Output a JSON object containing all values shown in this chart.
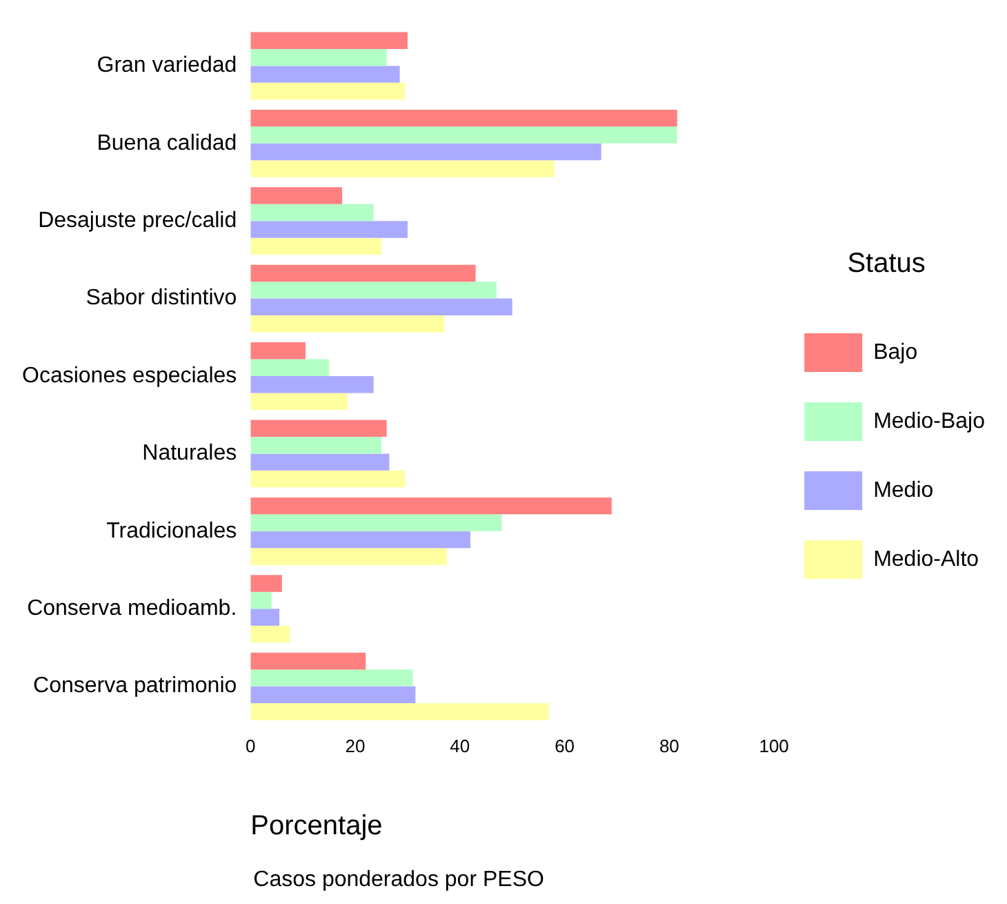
{
  "chart_data": {
    "type": "bar",
    "orientation": "horizontal",
    "xlabel": "Porcentaje",
    "legend_title": "Status",
    "legend": "right",
    "grid": false,
    "categories": [
      "Gran variedad",
      "Buena calidad",
      "Desajuste prec/calid",
      "Sabor distintivo",
      "Ocasiones especiales",
      "Naturales",
      "Tradicionales",
      "Conserva medioamb.",
      "Conserva patrimonio"
    ],
    "xlim": [
      0,
      100
    ],
    "xticks": [
      0,
      20,
      40,
      60,
      80,
      100
    ],
    "series": [
      {
        "name": "Bajo",
        "color": "#ff8080",
        "values": [
          30,
          81.5,
          17.5,
          43,
          10.5,
          26,
          69,
          6,
          22
        ]
      },
      {
        "name": "Medio-Bajo",
        "color": "#b3ffc6",
        "values": [
          26,
          81.5,
          23.5,
          47,
          15,
          25,
          48,
          4,
          31
        ]
      },
      {
        "name": "Medio",
        "color": "#aaaaff",
        "values": [
          28.5,
          67,
          30,
          50,
          23.5,
          26.5,
          42,
          5.5,
          31.5
        ]
      },
      {
        "name": "Medio-Alto",
        "color": "#ffffa0",
        "values": [
          29.5,
          58,
          25,
          37,
          18.5,
          29.5,
          37.5,
          7.5,
          57
        ]
      }
    ],
    "annotations": [
      "Casos ponderados por PESO"
    ]
  }
}
